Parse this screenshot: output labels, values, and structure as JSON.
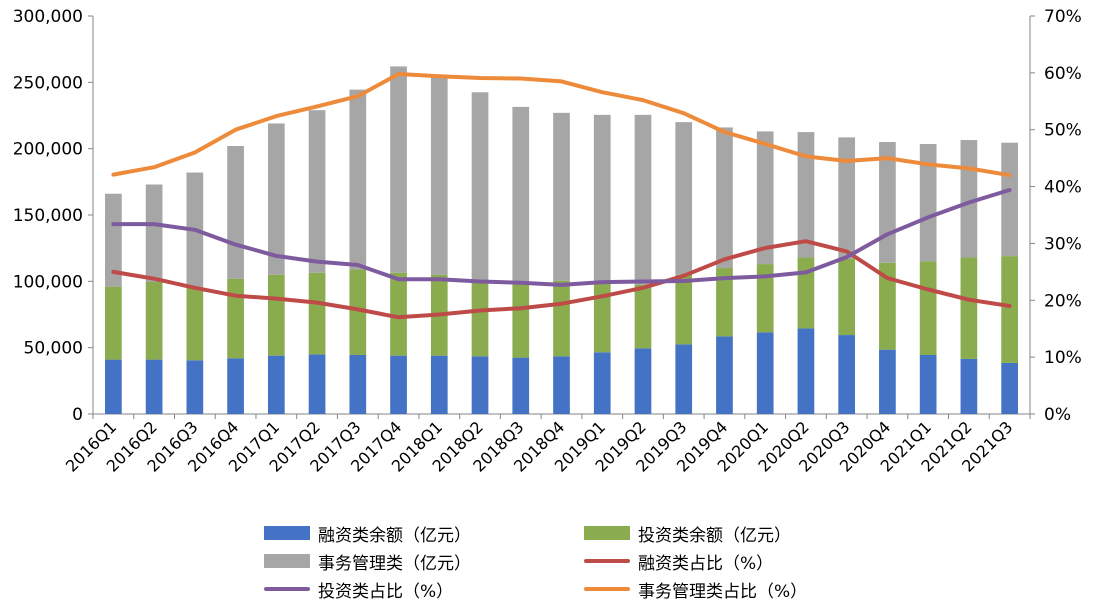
{
  "chart_data": {
    "type": "bar",
    "categories": [
      "2016Q1",
      "2016Q2",
      "2016Q3",
      "2016Q4",
      "2017Q1",
      "2017Q2",
      "2017Q3",
      "2017Q4",
      "2018Q1",
      "2018Q2",
      "2018Q3",
      "2018Q4",
      "2019Q1",
      "2019Q2",
      "2019Q3",
      "2019Q4",
      "2020Q1",
      "2020Q2",
      "2020Q3",
      "2020Q4",
      "2021Q1",
      "2021Q2",
      "2021Q3"
    ],
    "left_axis": {
      "ylim": [
        0,
        300000
      ],
      "ticks": [
        "0",
        "50,000",
        "100,000",
        "150,000",
        "200,000",
        "250,000",
        "300,000"
      ]
    },
    "right_axis": {
      "ylim": [
        0,
        70
      ],
      "ticks": [
        "0%",
        "10%",
        "20%",
        "30%",
        "40%",
        "50%",
        "60%",
        "70%"
      ]
    },
    "bar_series": [
      {
        "name": "融资类余额（亿元）",
        "color": "#4472C4",
        "values": [
          41000,
          41000,
          40500,
          42000,
          44000,
          45000,
          44500,
          44000,
          44000,
          43500,
          42500,
          43500,
          46500,
          49500,
          52500,
          58500,
          61500,
          64500,
          59500,
          48500,
          44500,
          41500,
          38500
        ]
      },
      {
        "name": "投资类余额（亿元）",
        "color": "#8AAB4E",
        "values": [
          55000,
          58500,
          55500,
          60000,
          61000,
          61500,
          64500,
          62500,
          61000,
          56500,
          55500,
          57000,
          51500,
          48000,
          52500,
          51500,
          51500,
          53500,
          57500,
          65500,
          70500,
          76500,
          80500
        ]
      },
      {
        "name": "事务管理类（亿元）",
        "color": "#A6A6A6",
        "values": [
          70000,
          73500,
          86000,
          100000,
          114000,
          122500,
          135500,
          155500,
          149500,
          142500,
          133500,
          126500,
          127500,
          128000,
          115000,
          106000,
          100000,
          94500,
          91500,
          91000,
          88500,
          88500,
          85500
        ]
      }
    ],
    "line_series": [
      {
        "name": "融资类占比（%）",
        "color": "#BE4B48",
        "values": [
          25,
          23.8,
          22.2,
          20.8,
          20.3,
          19.6,
          18.4,
          17,
          17.5,
          18.2,
          18.6,
          19.4,
          20.7,
          22.2,
          24.3,
          27.2,
          29.2,
          30.4,
          28.6,
          23.9,
          21.9,
          20.1,
          19
        ]
      },
      {
        "name": "投资类占比（%）",
        "color": "#7E5B9E",
        "values": [
          33.4,
          33.4,
          32.4,
          29.8,
          27.8,
          26.8,
          26.2,
          23.7,
          23.7,
          23.3,
          23.1,
          22.7,
          23.2,
          23.3,
          23.4,
          23.9,
          24.2,
          24.9,
          27.6,
          31.6,
          34.6,
          37.2,
          39.4
        ]
      },
      {
        "name": "事务管理类占比（%）",
        "color": "#ED8B3A",
        "values": [
          42.1,
          43.4,
          46,
          50,
          52.4,
          54.1,
          55.9,
          59.8,
          59.4,
          59.1,
          59,
          58.5,
          56.6,
          55.2,
          52.9,
          49.6,
          47.5,
          45.3,
          44.5,
          45,
          43.9,
          43.2,
          42
        ]
      }
    ],
    "legend_position": "bottom"
  }
}
